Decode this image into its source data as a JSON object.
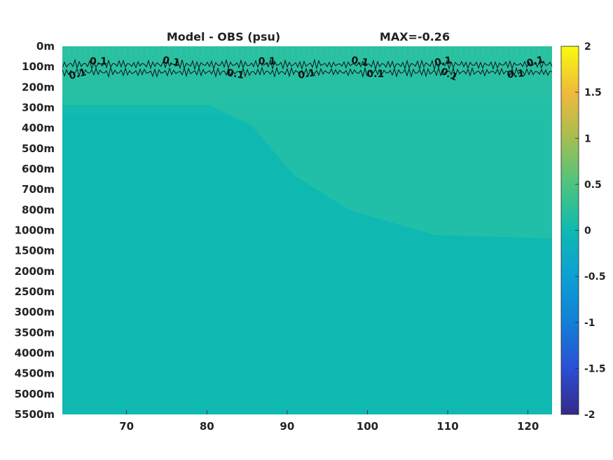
{
  "chart_data": {
    "type": "heatmap",
    "title": "Model - OBS (psu)",
    "annotation": "MAX=-0.26",
    "x_ticks": [
      70,
      80,
      90,
      100,
      110,
      120
    ],
    "x_range": [
      62,
      123
    ],
    "y_ticks": [
      "0m",
      "100m",
      "200m",
      "300m",
      "400m",
      "500m",
      "600m",
      "700m",
      "800m",
      "1000m",
      "1500m",
      "2000m",
      "2500m",
      "3000m",
      "3500m",
      "4000m",
      "4500m",
      "5000m",
      "5500m"
    ],
    "colorbar": {
      "range": [
        -2,
        2
      ],
      "ticks": [
        "2",
        "1.5",
        "1",
        "0.5",
        "0",
        "-0.5",
        "-1",
        "-1.5",
        "-2"
      ],
      "colormap": "parula"
    },
    "field_colors": {
      "background": "#0fb9b1",
      "upper_band": "#22bfa8",
      "top_layer": "#30c29c"
    },
    "contour": {
      "level_label": "0.1",
      "line_color": "#111111",
      "labels_upper": [
        {
          "x": 66.5,
          "label": "0.1"
        },
        {
          "x": 75.5,
          "label": "0.1"
        },
        {
          "x": 87.5,
          "label": "0.1"
        },
        {
          "x": 99.0,
          "label": "0.1"
        },
        {
          "x": 109.5,
          "label": "0.1"
        },
        {
          "x": 121.0,
          "label": "0.1"
        }
      ],
      "labels_lower": [
        {
          "x": 64.0,
          "label": "0.1"
        },
        {
          "x": 83.5,
          "label": "0.1"
        },
        {
          "x": 92.5,
          "label": "0.1"
        },
        {
          "x": 101.0,
          "label": "0.1"
        },
        {
          "x": 110.0,
          "label": "0.1"
        },
        {
          "x": 118.5,
          "label": "0.1"
        }
      ]
    }
  }
}
